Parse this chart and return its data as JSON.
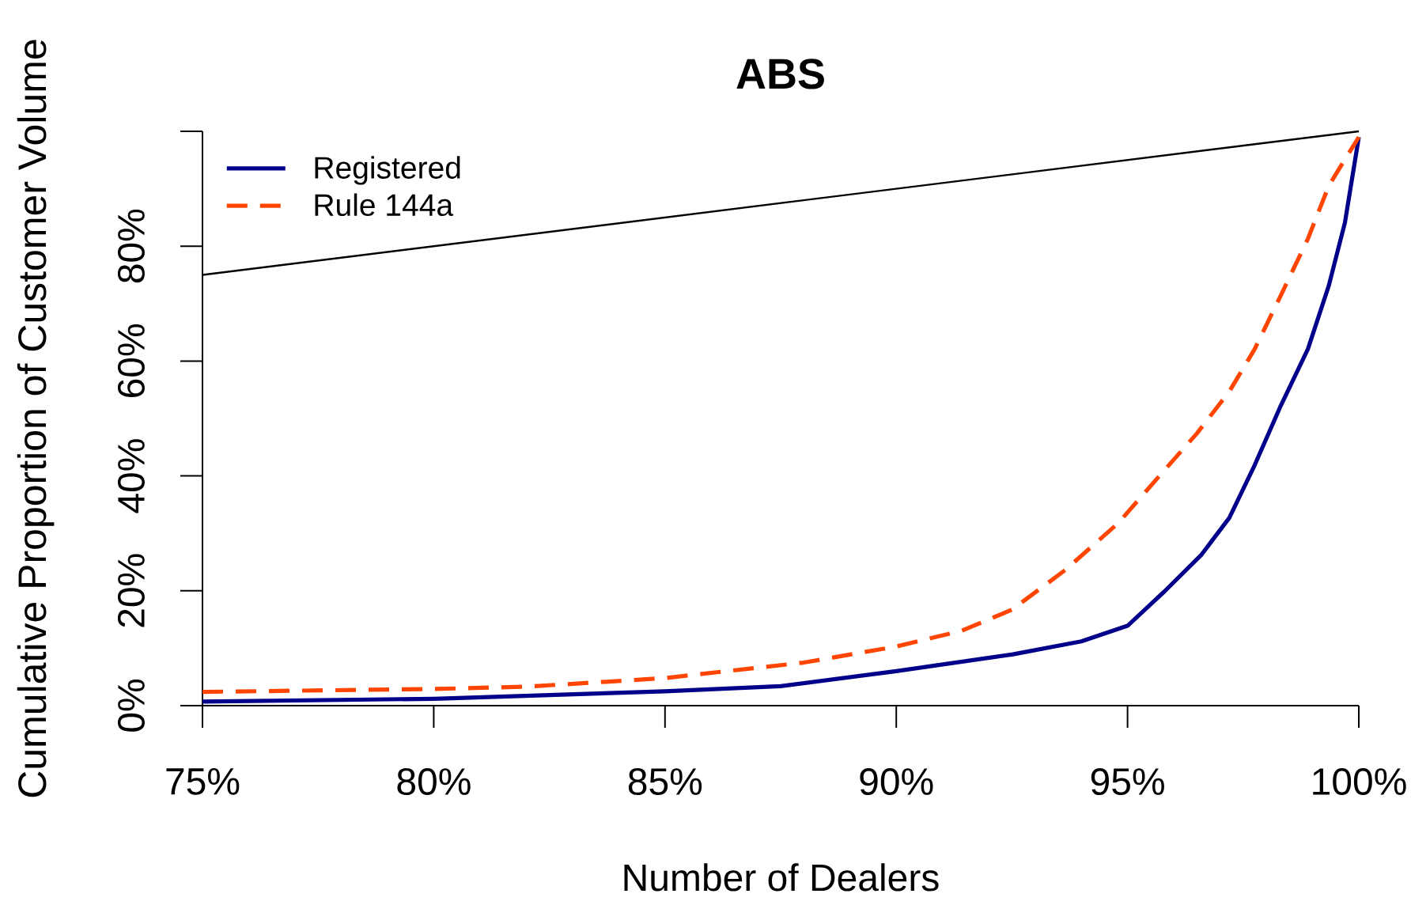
{
  "chart_data": {
    "type": "line",
    "title": "ABS",
    "xlabel": "Number of Dealers",
    "ylabel": "Cumulative Proportion of Customer Volume",
    "xlim": [
      75,
      100
    ],
    "ylim": [
      0,
      100
    ],
    "xticks": [
      {
        "value": 75,
        "label": "75%"
      },
      {
        "value": 80,
        "label": "80%"
      },
      {
        "value": 85,
        "label": "85%"
      },
      {
        "value": 90,
        "label": "90%"
      },
      {
        "value": 95,
        "label": "95%"
      },
      {
        "value": 100,
        "label": "100%"
      }
    ],
    "yticks": [
      {
        "value": 0,
        "label": "0%"
      },
      {
        "value": 20,
        "label": "20%"
      },
      {
        "value": 40,
        "label": "40%"
      },
      {
        "value": 60,
        "label": "60%"
      },
      {
        "value": 80,
        "label": "80%"
      },
      {
        "value": 100,
        "label": null
      }
    ],
    "legend": "top left",
    "series": [
      {
        "name": "Registered",
        "color": "#00008b",
        "line_style": "solid",
        "x": [
          75,
          80,
          85,
          87.5,
          90,
          92.5,
          94,
          95,
          95.8,
          96.6,
          97.2,
          97.75,
          98.3,
          98.9,
          99.35,
          99.7,
          100
        ],
        "values": [
          0.7,
          1.2,
          2.5,
          3.4,
          6.0,
          8.9,
          11.2,
          13.9,
          19.9,
          26.3,
          32.7,
          41.9,
          52.0,
          62.1,
          73.1,
          84.1,
          99
        ]
      },
      {
        "name": "Rule 144a",
        "color": "#ff4500",
        "line_style": "dashed",
        "x": [
          75,
          80,
          82,
          85,
          88,
          90,
          91.4,
          92.5,
          93.65,
          94.8,
          95.7,
          96.5,
          97.2,
          97.75,
          98.3,
          98.9,
          99.35,
          99.7,
          100
        ],
        "values": [
          2.4,
          2.9,
          3.3,
          4.8,
          7.5,
          10.3,
          13.0,
          16.7,
          23.6,
          31.8,
          40.1,
          47.4,
          54.7,
          62.1,
          71.2,
          81.3,
          90.5,
          95.1,
          99
        ]
      },
      {
        "color": "#000000",
        "line_style": "solid",
        "x": [
          75,
          100
        ],
        "values": [
          75,
          100
        ]
      }
    ]
  }
}
